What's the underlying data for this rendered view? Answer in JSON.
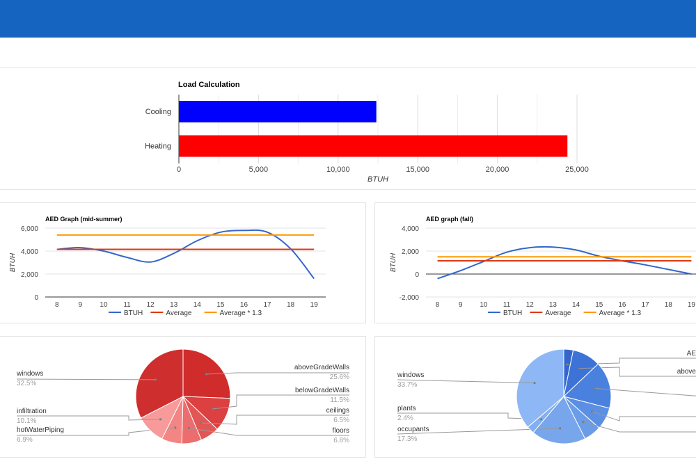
{
  "header": {
    "brand_color": "#1565c0"
  },
  "chart_data": [
    {
      "id": "load",
      "type": "bar",
      "orientation": "horizontal",
      "title": "Load Calculation",
      "categories": [
        "Cooling",
        "Heating"
      ],
      "values": [
        12400,
        24400
      ],
      "colors": [
        "#0000ff",
        "#ff0000"
      ],
      "xlabel": "BTUH",
      "xlim": [
        0,
        25000
      ],
      "ticks": [
        "0",
        "5,000",
        "10,000",
        "15,000",
        "20,000",
        "25,000"
      ]
    },
    {
      "id": "summer",
      "type": "line",
      "title": "AED Graph (mid-summer)",
      "ylabel": "BTUH",
      "x": [
        "8",
        "9",
        "10",
        "11",
        "12",
        "13",
        "14",
        "15",
        "16",
        "17",
        "18",
        "19"
      ],
      "ylim": [
        0,
        6000
      ],
      "yticks": [
        "0",
        "2,000",
        "4,000",
        "6,000"
      ],
      "series": [
        {
          "name": "BTUH",
          "color": "#3366cc",
          "values": [
            4150,
            4300,
            4000,
            3450,
            3050,
            3800,
            4900,
            5650,
            5800,
            5650,
            4200,
            1600
          ]
        },
        {
          "name": "Average",
          "color": "#dc3912",
          "values": [
            4150,
            4150,
            4150,
            4150,
            4150,
            4150,
            4150,
            4150,
            4150,
            4150,
            4150,
            4150
          ]
        },
        {
          "name": "Average * 1.3",
          "color": "#ff9900",
          "values": [
            5400,
            5400,
            5400,
            5400,
            5400,
            5400,
            5400,
            5400,
            5400,
            5400,
            5400,
            5400
          ]
        }
      ]
    },
    {
      "id": "fall",
      "type": "line",
      "title": "AED graph (fall)",
      "ylabel": "BTUH",
      "x": [
        "8",
        "9",
        "10",
        "11",
        "12",
        "13",
        "14",
        "15",
        "16",
        "17",
        "18",
        "19"
      ],
      "ylim": [
        -2000,
        4000
      ],
      "yticks": [
        "-2,000",
        "0",
        "2,000",
        "4,000"
      ],
      "series": [
        {
          "name": "BTUH",
          "color": "#3366cc",
          "values": [
            -400,
            300,
            1100,
            1900,
            2300,
            2350,
            2100,
            1550,
            1150,
            800,
            400,
            0
          ]
        },
        {
          "name": "Average",
          "color": "#dc3912",
          "values": [
            1150,
            1150,
            1150,
            1150,
            1150,
            1150,
            1150,
            1150,
            1150,
            1150,
            1150,
            1150
          ]
        },
        {
          "name": "Average * 1.3",
          "color": "#ff9900",
          "values": [
            1500,
            1500,
            1500,
            1500,
            1500,
            1500,
            1500,
            1500,
            1500,
            1500,
            1500,
            1500
          ]
        }
      ]
    },
    {
      "id": "pie-red",
      "type": "pie",
      "slices": [
        {
          "label": "aboveGradeWalls",
          "pct": "25.6%",
          "value": 25.6,
          "color": "#d02c2c"
        },
        {
          "label": "belowGradeWalls",
          "pct": "11.5%",
          "value": 11.5,
          "color": "#dc4040"
        },
        {
          "label": "ceilings",
          "pct": "6.5%",
          "value": 6.5,
          "color": "#e35656"
        },
        {
          "label": "floors",
          "pct": "6.8%",
          "value": 6.8,
          "color": "#ec6d6d"
        },
        {
          "label": "hotWaterPiping",
          "pct": "6.9%",
          "value": 6.9,
          "color": "#f38585"
        },
        {
          "label": "infiltration",
          "pct": "10.1%",
          "value": 10.1,
          "color": "#f89a9a"
        },
        {
          "label": "windows",
          "pct": "32.5%",
          "value": 32.5,
          "color": "#cf2e2e"
        }
      ]
    },
    {
      "id": "pie-blue",
      "type": "pie",
      "slices": [
        {
          "label": "AE",
          "pct": "",
          "value": 3.0,
          "color": "#3366cc"
        },
        {
          "label": "above",
          "pct": "",
          "value": 9.0,
          "color": "#3d72d6"
        },
        {
          "label": "",
          "pct": "",
          "value": 15.0,
          "color": "#4a81de"
        },
        {
          "label": "",
          "pct": "",
          "value": 7.0,
          "color": "#5a8fe3"
        },
        {
          "label": "",
          "pct": "",
          "value": 5.6,
          "color": "#6b9ce7"
        },
        {
          "label": "occupants",
          "pct": "17.3%",
          "value": 17.3,
          "color": "#77a6ec"
        },
        {
          "label": "plants",
          "pct": "2.4%",
          "value": 2.4,
          "color": "#82aff0"
        },
        {
          "label": "windows",
          "pct": "33.7%",
          "value": 33.7,
          "color": "#8db8f5"
        }
      ]
    }
  ]
}
